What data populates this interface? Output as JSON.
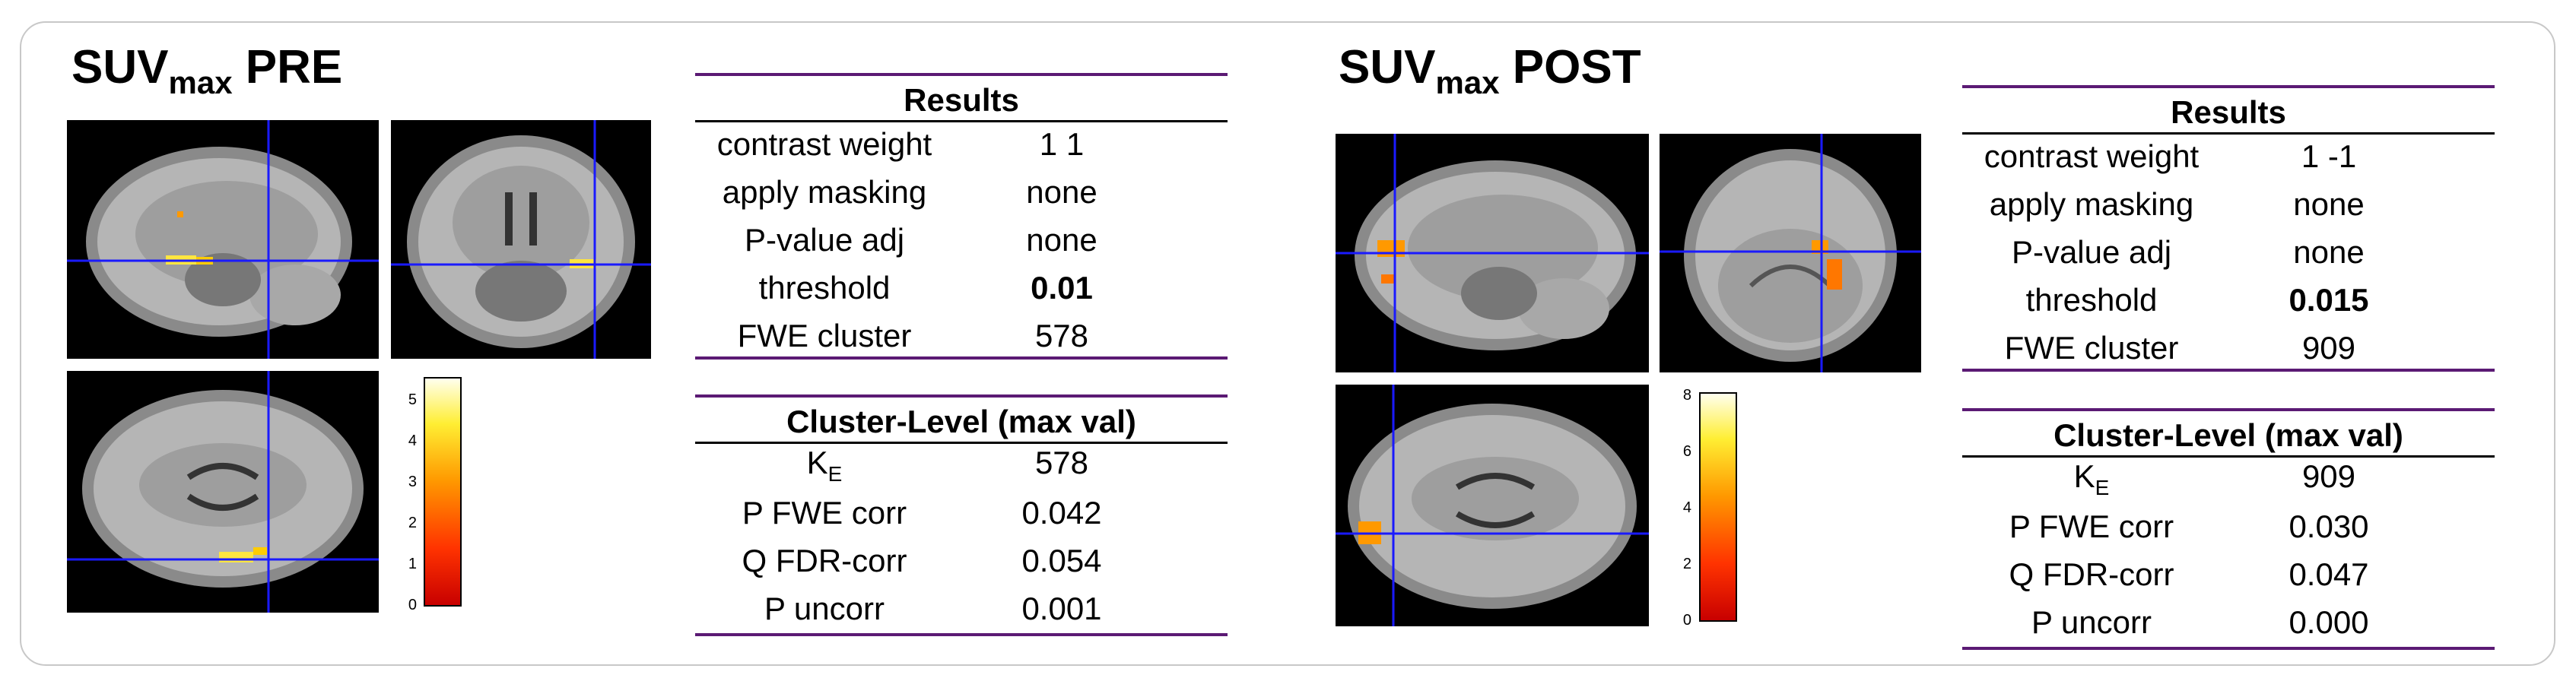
{
  "panels": [
    {
      "title_main": "SUV",
      "title_sub": "max",
      "title_suffix": "PRE",
      "colorbar_ticks": [
        "5",
        "4",
        "3",
        "2",
        "1",
        "0"
      ],
      "results_header": "Results",
      "results": [
        {
          "label": "contrast weight",
          "value": "1 1"
        },
        {
          "label": "apply masking",
          "value": "none"
        },
        {
          "label": "P-value adj",
          "value": "none"
        },
        {
          "label": "threshold",
          "value": "0.01"
        },
        {
          "label": "FWE cluster",
          "value": "578"
        }
      ],
      "cluster_header": "Cluster-Level (max val)",
      "cluster_ke_label": "K",
      "cluster_ke_sub": "E",
      "cluster_ke_value": "578",
      "cluster": [
        {
          "label": "P FWE corr",
          "value": "0.042"
        },
        {
          "label": "Q FDR-corr",
          "value": "0.054"
        },
        {
          "label": "P uncorr",
          "value": "0.001"
        }
      ]
    },
    {
      "title_main": "SUV",
      "title_sub": "max",
      "title_suffix": "POST",
      "colorbar_ticks": [
        "8",
        "6",
        "4",
        "2",
        "0"
      ],
      "results_header": "Results",
      "results": [
        {
          "label": "contrast weight",
          "value": "1 -1"
        },
        {
          "label": "apply masking",
          "value": "none"
        },
        {
          "label": "P-value adj",
          "value": "none"
        },
        {
          "label": "threshold",
          "value": "0.015"
        },
        {
          "label": "FWE cluster",
          "value": "909"
        }
      ],
      "cluster_header": "Cluster-Level (max val)",
      "cluster_ke_label": "K",
      "cluster_ke_sub": "E",
      "cluster_ke_value": "909",
      "cluster": [
        {
          "label": "P FWE corr",
          "value": "0.030"
        },
        {
          "label": "Q FDR-corr",
          "value": "0.047"
        },
        {
          "label": "P uncorr",
          "value": "0.000"
        }
      ]
    }
  ],
  "colors": {
    "rule": "#5b1a74",
    "crosshair": "#1a1aff",
    "activation": "#ffcc00"
  }
}
